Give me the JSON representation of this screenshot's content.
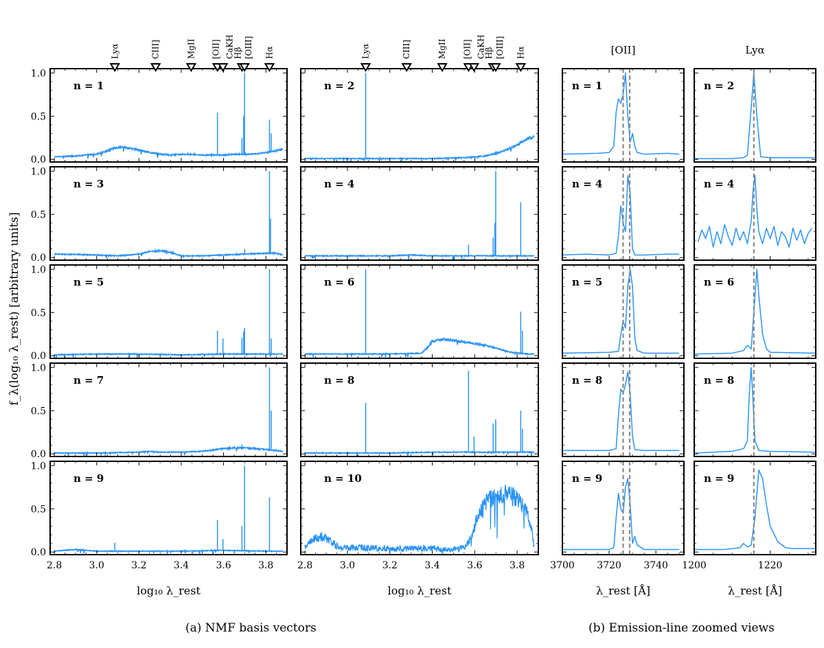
{
  "figure": {
    "ylabel": "f_λ(log₁₀ λ_rest) [arbitrary units]",
    "caption_a": "(a) NMF basis vectors",
    "caption_b": "(b) Emission-line zoomed views"
  },
  "chart_data": [
    {
      "type": "line",
      "title": "NMF basis vectors",
      "xlabel": "log₁₀ λ_rest",
      "xlim": [
        2.78,
        3.9
      ],
      "ylim": [
        -0.03,
        1.05
      ],
      "xticks": [
        "2.8",
        "3.0",
        "3.2",
        "3.4",
        "3.6",
        "3.8"
      ],
      "yticks": [
        "0.0",
        "0.5",
        "1.0"
      ],
      "line_markers": [
        {
          "label": "Lyα",
          "x": 3.086
        },
        {
          "label": "CIII]",
          "x": 3.279
        },
        {
          "label": "MgII",
          "x": 3.447
        },
        {
          "label": "[OII]",
          "x": 3.571
        },
        {
          "label": "CaKH",
          "x": 3.597
        },
        {
          "label": "Hβ",
          "x": 3.687
        },
        {
          "label": "[OIII]",
          "x": 3.699
        },
        {
          "label": "Hα",
          "x": 3.817
        }
      ],
      "series": [
        {
          "name": "n = 1",
          "x": [
            2.8,
            2.9,
            3.0,
            3.05,
            3.08,
            3.12,
            3.18,
            3.25,
            3.3,
            3.35,
            3.4,
            3.45,
            3.5,
            3.55,
            3.6,
            3.65,
            3.7,
            3.75,
            3.8,
            3.85,
            3.88
          ],
          "y": [
            0.03,
            0.04,
            0.06,
            0.1,
            0.13,
            0.14,
            0.12,
            0.08,
            0.06,
            0.05,
            0.06,
            0.06,
            0.05,
            0.05,
            0.05,
            0.06,
            0.06,
            0.06,
            0.08,
            0.1,
            0.12
          ],
          "peaks": [
            {
              "x": 3.571,
              "y": 0.54
            },
            {
              "x": 3.687,
              "y": 0.25
            },
            {
              "x": 3.695,
              "y": 0.5
            },
            {
              "x": 3.699,
              "y": 1.0
            },
            {
              "x": 3.817,
              "y": 0.46
            },
            {
              "x": 3.825,
              "y": 0.3
            }
          ]
        },
        {
          "name": "n = 2",
          "x": [
            2.8,
            3.0,
            3.2,
            3.4,
            3.55,
            3.65,
            3.7,
            3.75,
            3.8,
            3.85,
            3.88
          ],
          "y": [
            0.01,
            0.01,
            0.01,
            0.01,
            0.02,
            0.04,
            0.07,
            0.11,
            0.17,
            0.24,
            0.26
          ],
          "peaks": [
            {
              "x": 3.086,
              "y": 1.0
            }
          ]
        },
        {
          "name": "n = 3",
          "x": [
            2.8,
            3.0,
            3.1,
            3.2,
            3.25,
            3.3,
            3.35,
            3.4,
            3.5,
            3.6,
            3.7,
            3.8,
            3.85,
            3.88
          ],
          "y": [
            0.04,
            0.03,
            0.02,
            0.04,
            0.07,
            0.08,
            0.06,
            0.02,
            0.02,
            0.03,
            0.04,
            0.05,
            0.05,
            0.03
          ],
          "peaks": [
            {
              "x": 3.817,
              "y": 1.0
            },
            {
              "x": 3.822,
              "y": 0.45
            },
            {
              "x": 3.7,
              "y": 0.1
            }
          ]
        },
        {
          "name": "n = 4",
          "x": [
            2.8,
            3.0,
            3.2,
            3.3,
            3.4,
            3.6,
            3.88
          ],
          "y": [
            0.02,
            0.02,
            0.02,
            0.03,
            0.02,
            0.02,
            0.02
          ],
          "peaks": [
            {
              "x": 3.571,
              "y": 0.15
            },
            {
              "x": 3.687,
              "y": 0.23
            },
            {
              "x": 3.695,
              "y": 0.4
            },
            {
              "x": 3.699,
              "y": 1.0
            },
            {
              "x": 3.817,
              "y": 0.64
            }
          ]
        },
        {
          "name": "n = 5",
          "x": [
            2.8,
            3.0,
            3.2,
            3.4,
            3.6,
            3.8,
            3.88
          ],
          "y": [
            0.01,
            0.02,
            0.02,
            0.01,
            0.02,
            0.02,
            0.02
          ],
          "peaks": [
            {
              "x": 3.571,
              "y": 0.29
            },
            {
              "x": 3.597,
              "y": 0.2
            },
            {
              "x": 3.687,
              "y": 0.21
            },
            {
              "x": 3.695,
              "y": 0.28
            },
            {
              "x": 3.699,
              "y": 0.32
            },
            {
              "x": 3.817,
              "y": 1.0
            },
            {
              "x": 3.825,
              "y": 0.2
            }
          ]
        },
        {
          "name": "n = 6",
          "x": [
            2.8,
            3.0,
            3.2,
            3.35,
            3.38,
            3.4,
            3.45,
            3.5,
            3.55,
            3.6,
            3.65,
            3.7,
            3.75,
            3.8,
            3.85,
            3.88
          ],
          "y": [
            0.02,
            0.02,
            0.02,
            0.03,
            0.1,
            0.17,
            0.19,
            0.18,
            0.16,
            0.14,
            0.12,
            0.09,
            0.05,
            0.03,
            0.02,
            0.02
          ],
          "peaks": [
            {
              "x": 3.086,
              "y": 1.0
            },
            {
              "x": 3.817,
              "y": 0.51
            },
            {
              "x": 3.825,
              "y": 0.29
            }
          ]
        },
        {
          "name": "n = 7",
          "x": [
            2.8,
            3.0,
            3.2,
            3.25,
            3.3,
            3.4,
            3.5,
            3.6,
            3.65,
            3.7,
            3.75,
            3.8,
            3.85,
            3.88
          ],
          "y": [
            0.01,
            0.01,
            0.02,
            0.03,
            0.02,
            0.02,
            0.03,
            0.06,
            0.07,
            0.07,
            0.06,
            0.05,
            0.04,
            0.03
          ],
          "peaks": [
            {
              "x": 3.817,
              "y": 1.0
            },
            {
              "x": 3.825,
              "y": 0.5
            },
            {
              "x": 3.687,
              "y": 0.11
            }
          ]
        },
        {
          "name": "n = 8",
          "x": [
            2.8,
            3.0,
            3.2,
            3.4,
            3.6,
            3.88
          ],
          "y": [
            0.01,
            0.01,
            0.01,
            0.02,
            0.02,
            0.02
          ],
          "peaks": [
            {
              "x": 3.086,
              "y": 0.59
            },
            {
              "x": 3.571,
              "y": 0.96
            },
            {
              "x": 3.597,
              "y": 0.2
            },
            {
              "x": 3.687,
              "y": 0.35
            },
            {
              "x": 3.699,
              "y": 0.4
            },
            {
              "x": 3.817,
              "y": 0.5
            },
            {
              "x": 3.825,
              "y": 0.29
            }
          ]
        },
        {
          "name": "n = 9",
          "x": [
            2.8,
            2.9,
            3.0,
            3.2,
            3.4,
            3.6,
            3.8,
            3.88
          ],
          "y": [
            0.01,
            0.03,
            0.01,
            0.01,
            0.01,
            0.02,
            0.01,
            0.01
          ],
          "peaks": [
            {
              "x": 3.086,
              "y": 0.11
            },
            {
              "x": 3.571,
              "y": 0.37
            },
            {
              "x": 3.597,
              "y": 0.15
            },
            {
              "x": 3.687,
              "y": 0.3
            },
            {
              "x": 3.699,
              "y": 1.0
            },
            {
              "x": 3.817,
              "y": 0.63
            }
          ]
        },
        {
          "name": "n = 10",
          "x": [
            2.8,
            2.84,
            2.88,
            2.92,
            2.95,
            3.0,
            3.1,
            3.2,
            3.3,
            3.4,
            3.45,
            3.5,
            3.55,
            3.58,
            3.62,
            3.66,
            3.7,
            3.75,
            3.8,
            3.84,
            3.87,
            3.88
          ],
          "y": [
            0.05,
            0.15,
            0.18,
            0.13,
            0.07,
            0.05,
            0.05,
            0.04,
            0.04,
            0.04,
            0.03,
            0.03,
            0.05,
            0.15,
            0.45,
            0.6,
            0.65,
            0.68,
            0.62,
            0.5,
            0.25,
            0.05
          ],
          "peaks": []
        }
      ]
    },
    {
      "type": "line",
      "title": "[OII]",
      "xlabel": "λ_rest [Å]",
      "xlim": [
        3700,
        3752
      ],
      "ylim": [
        -0.03,
        1.05
      ],
      "xticks": [
        "3700",
        "3720",
        "3740"
      ],
      "reference_lines": [
        3726.0,
        3728.8
      ],
      "series": [
        {
          "name": "n = 1",
          "x": [
            3700,
            3715,
            3720,
            3722,
            3723,
            3724,
            3725,
            3726,
            3727,
            3728,
            3729,
            3730,
            3731,
            3732,
            3735,
            3745,
            3750
          ],
          "y": [
            0.06,
            0.07,
            0.08,
            0.15,
            0.55,
            0.7,
            0.65,
            0.75,
            1.0,
            0.5,
            0.2,
            0.3,
            0.15,
            0.08,
            0.06,
            0.07,
            0.06
          ]
        },
        {
          "name": "n = 4",
          "x": [
            3700,
            3710,
            3720,
            3723,
            3724,
            3725,
            3726,
            3727,
            3728,
            3729,
            3730,
            3731,
            3735,
            3745,
            3750
          ],
          "y": [
            0.03,
            0.04,
            0.03,
            0.05,
            0.25,
            0.6,
            0.4,
            0.3,
            0.95,
            0.75,
            0.1,
            0.03,
            0.03,
            0.04,
            0.04
          ]
        },
        {
          "name": "n = 5",
          "x": [
            3700,
            3720,
            3724,
            3725,
            3726,
            3727,
            3728,
            3729,
            3730,
            3731,
            3732,
            3735,
            3745,
            3750
          ],
          "y": [
            0.03,
            0.04,
            0.05,
            0.25,
            0.4,
            0.32,
            0.8,
            1.0,
            0.8,
            0.2,
            0.06,
            0.03,
            0.03,
            0.03
          ]
        },
        {
          "name": "n = 8",
          "x": [
            3700,
            3720,
            3723,
            3724,
            3725,
            3726,
            3727,
            3728,
            3729,
            3730,
            3731,
            3735,
            3745,
            3750
          ],
          "y": [
            0.04,
            0.04,
            0.06,
            0.45,
            0.75,
            0.7,
            0.8,
            0.95,
            0.7,
            0.2,
            0.05,
            0.04,
            0.04,
            0.04
          ]
        },
        {
          "name": "n = 9",
          "x": [
            3700,
            3720,
            3722,
            3723,
            3724,
            3725,
            3726,
            3727,
            3728,
            3729,
            3730,
            3731,
            3732,
            3735,
            3745,
            3750
          ],
          "y": [
            0.03,
            0.03,
            0.05,
            0.4,
            0.68,
            0.5,
            0.45,
            0.75,
            0.85,
            0.55,
            0.1,
            0.18,
            0.08,
            0.03,
            0.03,
            0.03
          ]
        }
      ]
    },
    {
      "type": "line",
      "title": "Lyα",
      "xlabel": "λ_rest [Å]",
      "xlim": [
        1200,
        1232
      ],
      "ylim": [
        -0.03,
        1.05
      ],
      "xticks": [
        "1200",
        "1220"
      ],
      "reference_lines": [
        1215.7
      ],
      "series": [
        {
          "name": "n = 2",
          "x": [
            1200,
            1210,
            1213,
            1214,
            1215,
            1215.7,
            1216.5,
            1217.5,
            1220,
            1232
          ],
          "y": [
            0.01,
            0.01,
            0.02,
            0.05,
            0.6,
            1.0,
            0.5,
            0.03,
            0.02,
            0.02
          ]
        },
        {
          "name": "n = 4",
          "x": [
            1201,
            1202,
            1203,
            1204,
            1205,
            1206,
            1207,
            1208,
            1209,
            1210,
            1211,
            1212,
            1213,
            1214,
            1215,
            1215.5,
            1216,
            1216.5,
            1217,
            1218,
            1219,
            1220,
            1221,
            1222,
            1223,
            1224,
            1225,
            1226,
            1227,
            1228,
            1229,
            1230,
            1231
          ],
          "y": [
            0.18,
            0.32,
            0.22,
            0.36,
            0.12,
            0.3,
            0.16,
            0.38,
            0.24,
            0.14,
            0.34,
            0.2,
            0.3,
            0.16,
            0.42,
            0.78,
            0.95,
            0.55,
            0.3,
            0.16,
            0.34,
            0.22,
            0.36,
            0.14,
            0.3,
            0.24,
            0.12,
            0.34,
            0.2,
            0.32,
            0.16,
            0.28,
            0.34
          ]
        },
        {
          "name": "n = 6",
          "x": [
            1200,
            1210,
            1213,
            1214,
            1215,
            1215.7,
            1216.5,
            1217,
            1218,
            1219,
            1220,
            1232
          ],
          "y": [
            0.02,
            0.03,
            0.06,
            0.12,
            0.08,
            0.5,
            1.0,
            0.7,
            0.25,
            0.08,
            0.04,
            0.03
          ]
        },
        {
          "name": "n = 8",
          "x": [
            1200,
            1210,
            1213,
            1214,
            1214.5,
            1215,
            1215.5,
            1216,
            1217,
            1220,
            1232
          ],
          "y": [
            0.01,
            0.03,
            0.06,
            0.15,
            0.7,
            1.0,
            0.6,
            0.15,
            0.04,
            0.03,
            0.02
          ]
        },
        {
          "name": "n = 9",
          "x": [
            1200,
            1208,
            1212,
            1213,
            1214,
            1215,
            1216,
            1217,
            1218,
            1219,
            1220,
            1222,
            1224,
            1226,
            1232
          ],
          "y": [
            0.03,
            0.03,
            0.05,
            0.1,
            0.06,
            0.08,
            0.4,
            0.95,
            0.85,
            0.55,
            0.3,
            0.12,
            0.05,
            0.04,
            0.04
          ]
        }
      ]
    }
  ]
}
